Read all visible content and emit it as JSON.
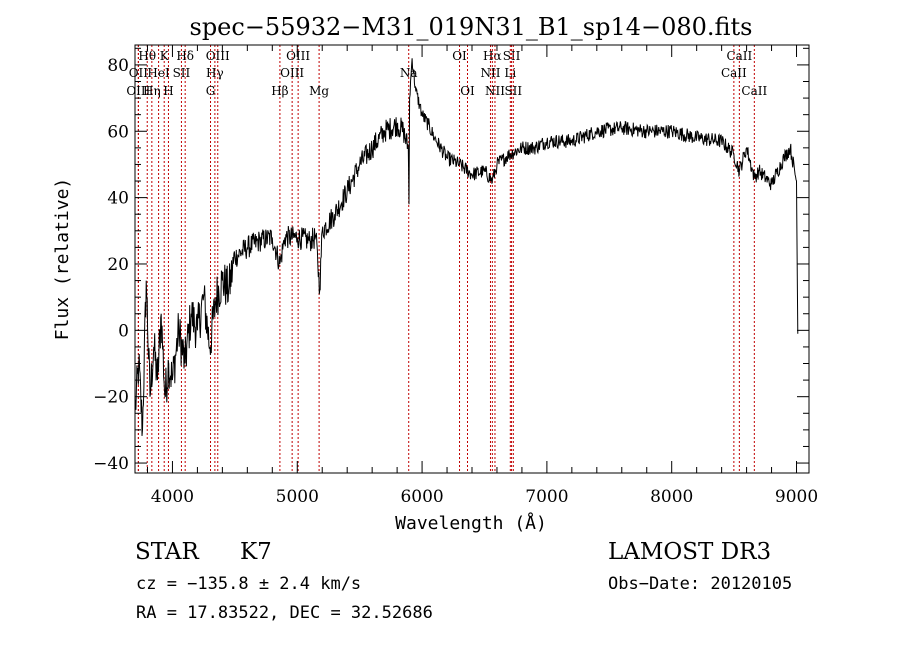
{
  "chart_data": {
    "type": "line",
    "title": "spec−55932−M31_019N31_B1_sp14−080.fits",
    "xlabel": "Wavelength (Å)",
    "ylabel": "Flux (relative)",
    "xlim": [
      3700,
      9100
    ],
    "ylim": [
      -43,
      86
    ],
    "xticks": [
      4000,
      5000,
      6000,
      7000,
      8000,
      9000
    ],
    "xtick_labels": [
      "4000",
      "5000",
      "6000",
      "7000",
      "8000",
      "9000"
    ],
    "yticks": [
      -40,
      -20,
      0,
      20,
      40,
      60,
      80
    ],
    "ytick_labels": [
      "−40",
      "−20",
      "0",
      "20",
      "40",
      "60",
      "80"
    ],
    "grid": false,
    "series": [
      {
        "name": "flux",
        "x": [
          3700,
          3730,
          3760,
          3790,
          3820,
          3850,
          3880,
          3910,
          3940,
          3970,
          4000,
          4050,
          4100,
          4150,
          4200,
          4250,
          4300,
          4350,
          4400,
          4450,
          4500,
          4600,
          4700,
          4800,
          4860,
          4900,
          5000,
          5100,
          5150,
          5180,
          5200,
          5300,
          5400,
          5500,
          5600,
          5700,
          5800,
          5850,
          5890,
          5895,
          5900,
          5920,
          5950,
          5980,
          6000,
          6050,
          6100,
          6200,
          6300,
          6400,
          6500,
          6563,
          6600,
          6700,
          6800,
          6900,
          7000,
          7200,
          7400,
          7600,
          7800,
          8000,
          8200,
          8400,
          8498,
          8542,
          8600,
          8662,
          8700,
          8800,
          8900,
          8950,
          9000,
          9010
        ],
        "y": [
          -25,
          -10,
          -30,
          15,
          -20,
          -5,
          -15,
          5,
          -20,
          -10,
          -15,
          0,
          -10,
          5,
          0,
          10,
          -5,
          10,
          15,
          12,
          22,
          25,
          27,
          28,
          20,
          28,
          28,
          27,
          28,
          12,
          30,
          35,
          42,
          50,
          55,
          60,
          62,
          60,
          55,
          38,
          70,
          82,
          72,
          68,
          65,
          62,
          58,
          52,
          50,
          47,
          48,
          45,
          50,
          53,
          55,
          55,
          57,
          57,
          60,
          61,
          60,
          60,
          58,
          57,
          53,
          48,
          55,
          46,
          48,
          44,
          52,
          55,
          45,
          -1
        ]
      }
    ],
    "lines": [
      {
        "label": "Hθ",
        "x": 3798,
        "row": 0
      },
      {
        "label": "OII",
        "x": 3727,
        "row": 1
      },
      {
        "label": "OIII",
        "x": 3727,
        "row": 2
      },
      {
        "label": "K",
        "x": 3934,
        "row": 0
      },
      {
        "label": "HeI",
        "x": 3889,
        "row": 1
      },
      {
        "label": "Hη",
        "x": 3835,
        "row": 2
      },
      {
        "label": "Hδ",
        "x": 4102,
        "row": 0
      },
      {
        "label": "SII",
        "x": 4072,
        "row": 1
      },
      {
        "label": "H",
        "x": 3968,
        "row": 2
      },
      {
        "label": "OIII",
        "x": 4363,
        "row": 0
      },
      {
        "label": "Hγ",
        "x": 4340,
        "row": 1
      },
      {
        "label": "G",
        "x": 4305,
        "row": 2
      },
      {
        "label": "OIII",
        "x": 5007,
        "row": 0
      },
      {
        "label": "OIII",
        "x": 4959,
        "row": 1
      },
      {
        "label": "Hβ",
        "x": 4861,
        "row": 2
      },
      {
        "label": "Mg",
        "x": 5175,
        "row": 2
      },
      {
        "label": "Na",
        "x": 5893,
        "row": 1
      },
      {
        "label": "OI",
        "x": 6300,
        "row": 0
      },
      {
        "label": "OI",
        "x": 6364,
        "row": 2
      },
      {
        "label": "Hα",
        "x": 6563,
        "row": 0
      },
      {
        "label": "NII",
        "x": 6548,
        "row": 1
      },
      {
        "label": "NII",
        "x": 6584,
        "row": 2
      },
      {
        "label": "SII",
        "x": 6717,
        "row": 0
      },
      {
        "label": "Li",
        "x": 6707,
        "row": 1
      },
      {
        "label": "SII",
        "x": 6731,
        "row": 2
      },
      {
        "label": "CaII",
        "x": 8542,
        "row": 0
      },
      {
        "label": "CaII",
        "x": 8498,
        "row": 1
      },
      {
        "label": "CaII",
        "x": 8662,
        "row": 2
      }
    ]
  },
  "info": {
    "class_label": "STAR",
    "subclass": "K7",
    "survey": "LAMOST DR3",
    "cz": "cz = −135.8 ± 2.4 km/s",
    "obs_date": "Obs−Date: 20120105",
    "coords": "RA =  17.83522, DEC =  32.52686"
  }
}
